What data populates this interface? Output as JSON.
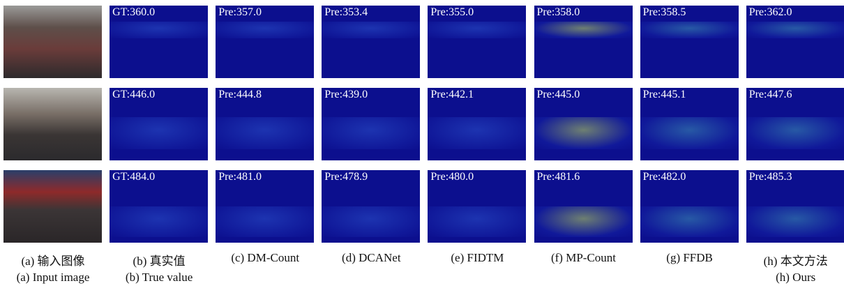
{
  "captions": [
    [
      "(a) 输入图像",
      "(a) Input image"
    ],
    [
      "(b) 真实值",
      "(b) True value"
    ],
    [
      "(c) DM-Count"
    ],
    [
      "(d) DCANet"
    ],
    [
      "(e) FIDTM"
    ],
    [
      "(f) MP-Count"
    ],
    [
      "(g) FFDB"
    ],
    [
      "(h) 本文方法",
      "(h) Ours"
    ]
  ],
  "rows": [
    {
      "labels": [
        "GT:360.0",
        "Pre:357.0",
        "Pre:353.4",
        "Pre:355.0",
        "Pre:358.0",
        "Pre:358.5",
        "Pre:362.0"
      ]
    },
    {
      "labels": [
        "GT:446.0",
        "Pre:444.8",
        "Pre:439.0",
        "Pre:442.1",
        "Pre:445.0",
        "Pre:445.1",
        "Pre:447.6"
      ]
    },
    {
      "labels": [
        "GT:484.0",
        "Pre:481.0",
        "Pre:478.9",
        "Pre:480.0",
        "Pre:481.6",
        "Pre:482.0",
        "Pre:485.3"
      ]
    }
  ]
}
